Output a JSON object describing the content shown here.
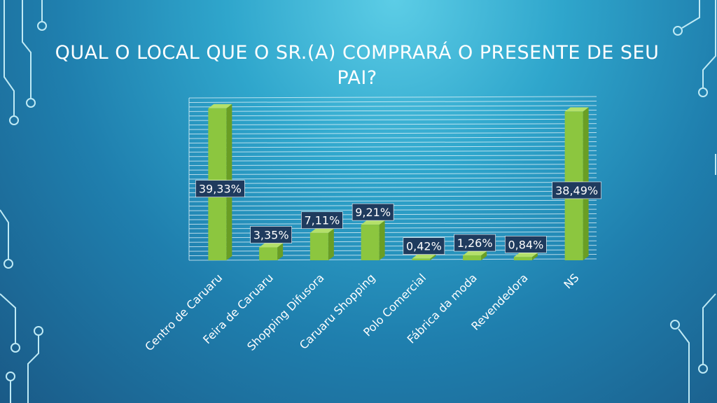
{
  "slide": {
    "title": "QUAL O LOCAL QUE O SR.(A) COMPRARÁ O PRESENTE DE SEU PAI?"
  },
  "colors": {
    "bar_front": "#8cc63f",
    "bar_side": "#6a9e24",
    "bar_top": "#b4e06a",
    "label_bg": "#1f3b5e",
    "gridline": "#e8f6fb",
    "text": "#ffffff"
  },
  "chart_data": {
    "type": "bar",
    "categories": [
      "Centro de Caruaru",
      "Feira de Caruaru",
      "Shopping Difusora",
      "Caruaru Shopping",
      "Polo Comercial",
      "Fábrica da moda",
      "Revendedora",
      "NS"
    ],
    "values": [
      39.33,
      3.35,
      7.11,
      9.21,
      0.42,
      1.26,
      0.84,
      38.49
    ],
    "data_labels": [
      "39,33%",
      "3,35%",
      "7,11%",
      "9,21%",
      "0,42%",
      "1,26%",
      "0,84%",
      "38,49%"
    ],
    "ylim": [
      0,
      42
    ],
    "grid": true,
    "legend": "none",
    "xlabel": "",
    "ylabel": ""
  }
}
